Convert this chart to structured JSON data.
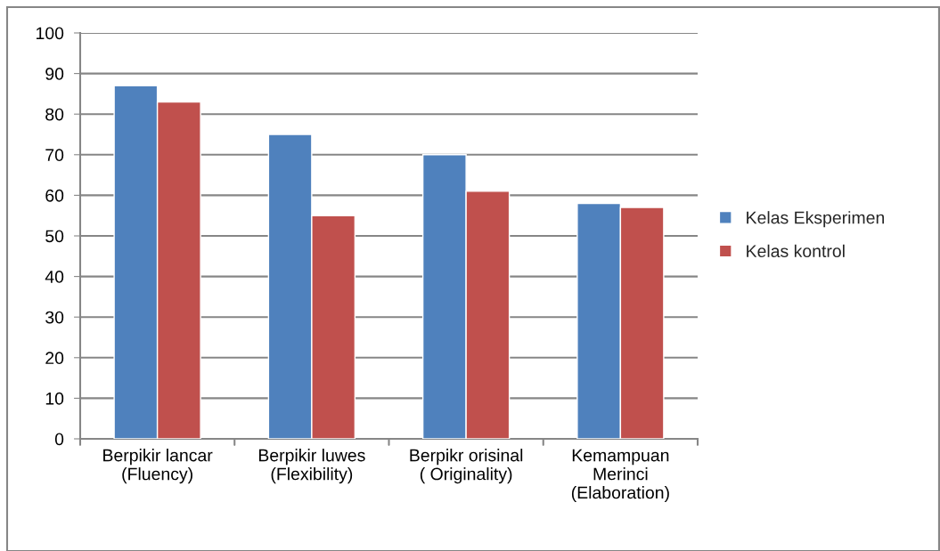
{
  "chart_data": {
    "type": "bar",
    "categories": [
      "Berpikir lancar\n(Fluency)",
      "Berpikir luwes\n(Flexibility)",
      "Berpikr orisinal\n( Originality)",
      "Kemampuan\nMerinci\n(Elaboration)"
    ],
    "series": [
      {
        "name": "Kelas Eksperimen",
        "color": "#4f81bd",
        "values": [
          87,
          75,
          70,
          58
        ]
      },
      {
        "name": "Kelas kontrol",
        "color": "#c0504d",
        "values": [
          83,
          55,
          61,
          57
        ]
      }
    ],
    "ylim": [
      0,
      100
    ],
    "yticks": [
      0,
      10,
      20,
      30,
      40,
      50,
      60,
      70,
      80,
      90,
      100
    ],
    "grid": "y",
    "legend": "right"
  }
}
